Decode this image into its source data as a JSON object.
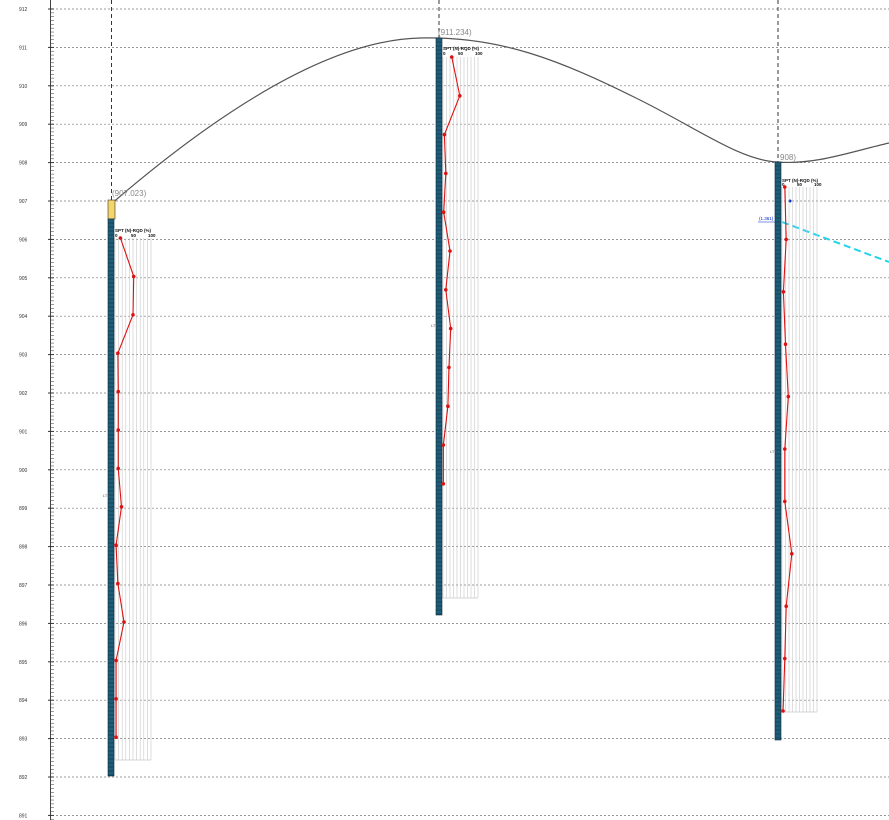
{
  "elevation_axis": {
    "ticks": [
      "912",
      "911",
      "910",
      "909",
      "908",
      "907",
      "906",
      "905",
      "904",
      "903",
      "902",
      "901",
      "900",
      "899",
      "898",
      "897",
      "896",
      "895",
      "894",
      "893",
      "892",
      "891"
    ]
  },
  "ground_profile": {
    "color": "#555555"
  },
  "water_table": {
    "color": "#22d3ee"
  },
  "spt_rqd_chart": {
    "title": "SPT (N)-RQD (%)",
    "ticks": [
      "0",
      "50",
      "100"
    ],
    "line_color": "#dd1111",
    "grid_color": "#c8c8c8"
  },
  "boreholes": [
    {
      "id": "bh-1",
      "collar_label": "(907.023)",
      "layer_label": "LT1",
      "spt_values": [
        15,
        52,
        50,
        8,
        9,
        9,
        9,
        18,
        3,
        8,
        25,
        3,
        3,
        3
      ],
      "colors": {
        "column": "#1f5e7a",
        "cap": "#f5d46a"
      }
    },
    {
      "id": "bh-2",
      "collar_label": "(911.234)",
      "layer_label": "LT1",
      "spt_values": [
        25,
        48,
        4,
        8,
        2,
        20,
        8,
        22,
        17,
        14,
        1,
        1
      ],
      "colors": {
        "column": "#1f5e7a"
      }
    },
    {
      "id": "bh-3",
      "collar_label": "908)",
      "water_label": "(1.361)",
      "layer_label": "LT1",
      "spt_values": [
        8,
        12,
        4,
        10,
        18,
        8,
        8,
        28,
        12,
        8,
        3
      ],
      "colors": {
        "column": "#1f5e7a",
        "water_marker": "#0022cc"
      }
    }
  ]
}
